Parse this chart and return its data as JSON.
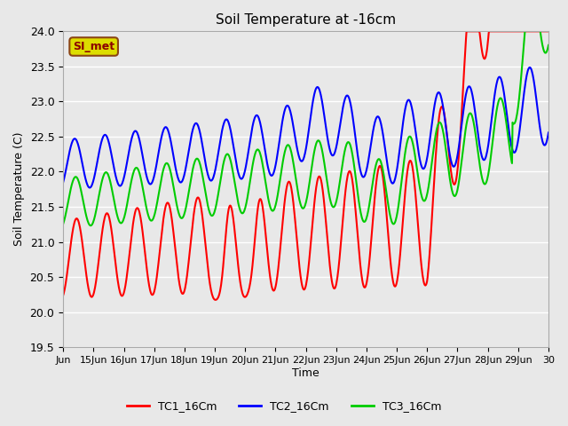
{
  "title": "Soil Temperature at -16cm",
  "ylabel": "Soil Temperature (C)",
  "xlabel": "Time",
  "ylim": [
    19.5,
    24.0
  ],
  "yticks": [
    19.5,
    20.0,
    20.5,
    21.0,
    21.5,
    22.0,
    22.5,
    23.0,
    23.5,
    24.0
  ],
  "annotation_text": "SI_met",
  "annotation_bg": "#DDDD00",
  "annotation_border": "#8B4513",
  "line_colors": [
    "#FF0000",
    "#0000FF",
    "#00CC00"
  ],
  "line_labels": [
    "TC1_16Cm",
    "TC2_16Cm",
    "TC3_16Cm"
  ],
  "line_width": 1.5,
  "bg_color": "#E8E8E8",
  "plot_bg": "#E8E8E8",
  "grid_color": "#FFFFFF",
  "xtick_positions": [
    14,
    15,
    16,
    17,
    18,
    19,
    20,
    21,
    22,
    23,
    24,
    25,
    26,
    27,
    28,
    29,
    30
  ],
  "xtick_labels": [
    "Jun",
    "15Jun",
    "16Jun",
    "17Jun",
    "18Jun",
    "19Jun",
    "20Jun",
    "21Jun",
    "22Jun",
    "23Jun",
    "24Jun",
    "25Jun",
    "26Jun",
    "27Jun",
    "28Jun",
    "29Jun",
    "30"
  ],
  "x_start": 14.0,
  "x_end": 30.0
}
